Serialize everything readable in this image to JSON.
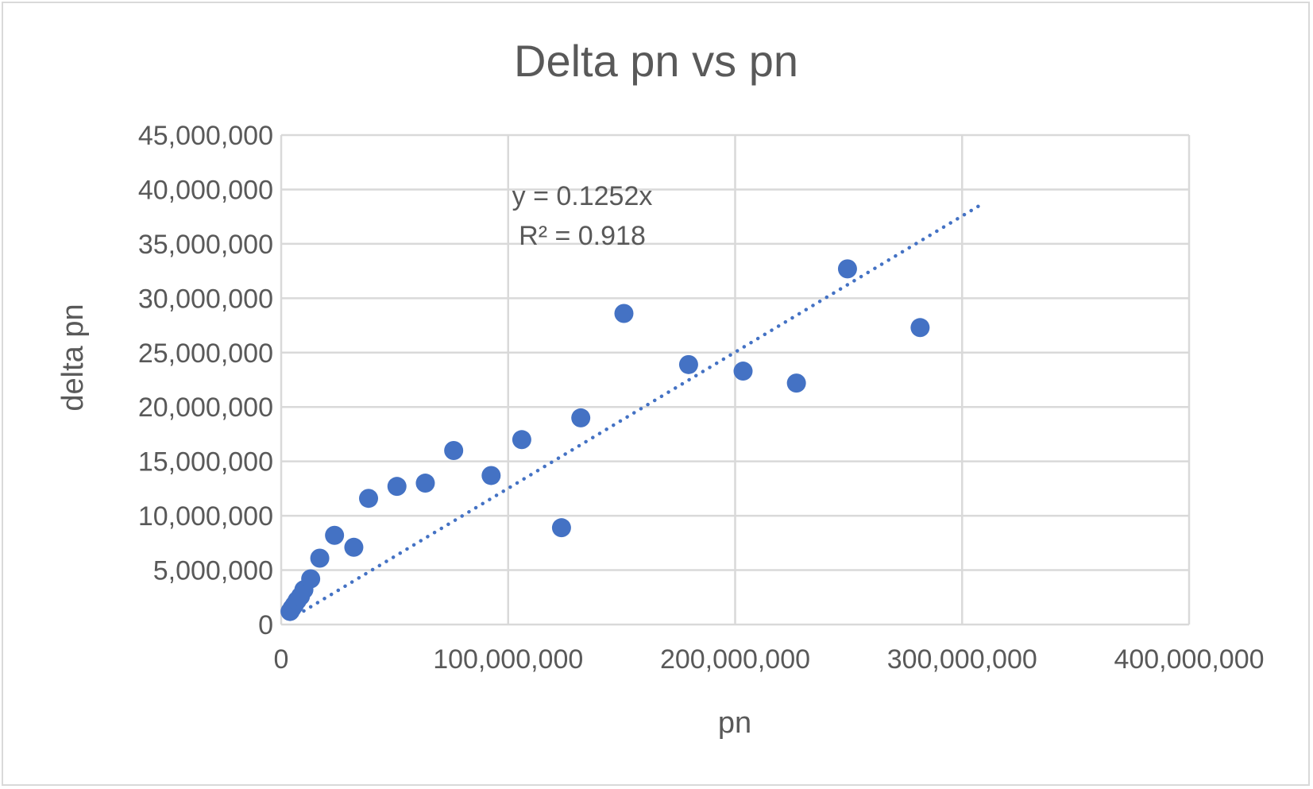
{
  "chart_data": {
    "type": "scatter",
    "title": "Delta pn vs pn",
    "xlabel": "pn",
    "ylabel": "delta pn",
    "xlim": [
      0,
      400000000
    ],
    "ylim": [
      0,
      45000000
    ],
    "x_ticks": [
      "0",
      "100,000,000",
      "200,000,000",
      "300,000,000",
      "400,000,000"
    ],
    "y_ticks": [
      "0",
      "5,000,000",
      "10,000,000",
      "15,000,000",
      "20,000,000",
      "25,000,000",
      "30,000,000",
      "35,000,000",
      "40,000,000",
      "45,000,000"
    ],
    "grid": true,
    "legend": "none",
    "series": [
      {
        "color": "#4472c4",
        "points": [
          {
            "x": 3900000,
            "y": 1200000
          },
          {
            "x": 4800000,
            "y": 1500000
          },
          {
            "x": 5800000,
            "y": 1800000
          },
          {
            "x": 7000000,
            "y": 2200000
          },
          {
            "x": 8500000,
            "y": 2600000
          },
          {
            "x": 10000000,
            "y": 3200000
          },
          {
            "x": 13000000,
            "y": 4200000
          },
          {
            "x": 17000000,
            "y": 6100000
          },
          {
            "x": 23500000,
            "y": 8200000
          },
          {
            "x": 32000000,
            "y": 7100000
          },
          {
            "x": 38500000,
            "y": 11600000
          },
          {
            "x": 51000000,
            "y": 12700000
          },
          {
            "x": 63500000,
            "y": 13000000
          },
          {
            "x": 76000000,
            "y": 16000000
          },
          {
            "x": 92500000,
            "y": 13700000
          },
          {
            "x": 106000000,
            "y": 17000000
          },
          {
            "x": 123500000,
            "y": 8900000
          },
          {
            "x": 132000000,
            "y": 19000000
          },
          {
            "x": 151000000,
            "y": 28600000
          },
          {
            "x": 179500000,
            "y": 23900000
          },
          {
            "x": 203500000,
            "y": 23300000
          },
          {
            "x": 227000000,
            "y": 22200000
          },
          {
            "x": 249500000,
            "y": 32700000
          },
          {
            "x": 281500000,
            "y": 27300000
          }
        ]
      }
    ],
    "trendline": {
      "type": "linear",
      "slope": 0.1252,
      "x_range": [
        3900000,
        308000000
      ],
      "style": "dotted",
      "color": "#4472c4",
      "equation": "y = 0.1252x",
      "r_squared": "R² = 0.918"
    }
  }
}
